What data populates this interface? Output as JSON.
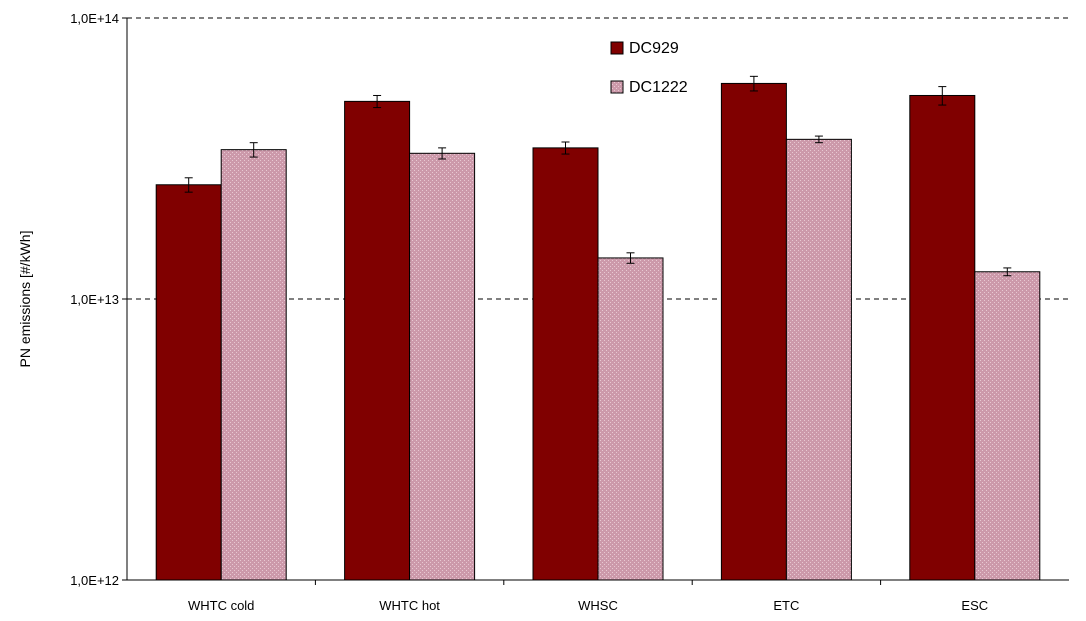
{
  "chart_data": {
    "type": "bar",
    "title": "",
    "xlabel": "",
    "ylabel": "PN emissions  [#/kWh]",
    "yscale": "log",
    "ylim": [
      1000000000000.0,
      100000000000000.0
    ],
    "yticks": [
      1000000000000.0,
      10000000000000.0,
      100000000000000.0
    ],
    "ytick_labels": [
      "1,0E+12",
      "1,0E+13",
      "1,0E+14"
    ],
    "grid": "dashed horizontal at major ticks",
    "legend_position": "top-center",
    "categories": [
      "WHTC cold",
      "WHTC hot",
      "WHSC",
      "ETC",
      "ESC"
    ],
    "series": [
      {
        "name": "DC929",
        "color": "#800000",
        "values": [
          25500000000000.0,
          50500000000000.0,
          34500000000000.0,
          58500000000000.0,
          53000000000000.0
        ],
        "errors": [
          1500000000000.0,
          2500000000000.0,
          1700000000000.0,
          3500000000000.0,
          4000000000000.0
        ]
      },
      {
        "name": "DC1222",
        "color": "#cc99aa",
        "values": [
          34000000000000.0,
          33000000000000.0,
          14000000000000.0,
          37000000000000.0,
          12500000000000.0
        ],
        "errors": [
          2000000000000.0,
          1500000000000.0,
          600000000000.0,
          1000000000000.0,
          400000000000.0
        ]
      }
    ]
  }
}
